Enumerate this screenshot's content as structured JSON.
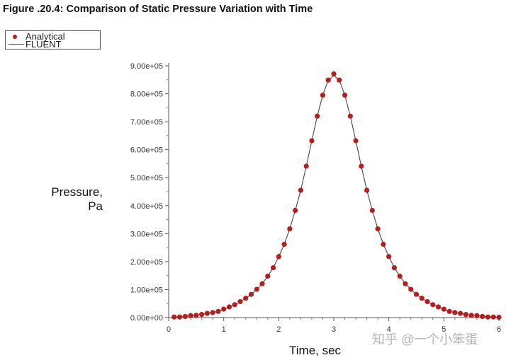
{
  "title": "Figure .20.4: Comparison of Static Pressure Variation with Time",
  "watermark": "知乎 @一个小笨蛋",
  "chart_data": {
    "type": "line",
    "title": "Figure .20.4: Comparison of Static Pressure Variation with Time",
    "xlabel": "Time, sec",
    "ylabel": [
      "Pressure,",
      "Pa"
    ],
    "xlim": [
      0,
      6
    ],
    "ylim": [
      0,
      900000
    ],
    "xticks": [
      "0",
      "1",
      "2",
      "3",
      "4",
      "5",
      "6"
    ],
    "yticks": [
      "0.00e+00",
      "1.00e+05",
      "2.00e+05",
      "3.00e+05",
      "4.00e+05",
      "5.00e+05",
      "6.00e+05",
      "7.00e+05",
      "8.00e+05",
      "9.00e+05"
    ],
    "grid": false,
    "legend_position": "top-left",
    "colors": {
      "analytical": "#b81c1c",
      "fluent": "#444444"
    },
    "series": [
      {
        "name": "Analytical",
        "style": "markers",
        "x": [
          0.1,
          0.2,
          0.3,
          0.4,
          0.5,
          0.6,
          0.7,
          0.8,
          0.9,
          1.0,
          1.1,
          1.2,
          1.3,
          1.4,
          1.5,
          1.6,
          1.7,
          1.8,
          1.9,
          2.0,
          2.1,
          2.2,
          2.3,
          2.4,
          2.5,
          2.6,
          2.7,
          2.8,
          2.9,
          3.0,
          3.1,
          3.2,
          3.3,
          3.4,
          3.5,
          3.6,
          3.7,
          3.8,
          3.9,
          4.0,
          4.1,
          4.2,
          4.3,
          4.4,
          4.5,
          4.6,
          4.7,
          4.8,
          4.9,
          5.0,
          5.1,
          5.2,
          5.3,
          5.4,
          5.5,
          5.6,
          5.7,
          5.8,
          5.9,
          6.0
        ],
        "y": [
          2000,
          2000,
          4000,
          7000,
          8000,
          11000,
          15000,
          18000,
          22000,
          30000,
          38000,
          46000,
          57000,
          69000,
          83000,
          101000,
          121000,
          148000,
          178000,
          218000,
          262000,
          317000,
          383000,
          455000,
          541000,
          632000,
          720000,
          795000,
          849000,
          871000,
          849000,
          795000,
          720000,
          632000,
          541000,
          455000,
          383000,
          317000,
          262000,
          218000,
          178000,
          148000,
          121000,
          101000,
          83000,
          69000,
          57000,
          46000,
          38000,
          30000,
          22000,
          18000,
          15000,
          11000,
          8000,
          7000,
          4000,
          2000,
          2000,
          1000
        ]
      },
      {
        "name": "FLUENT",
        "style": "line",
        "x": [
          0.1,
          0.2,
          0.3,
          0.4,
          0.5,
          0.6,
          0.7,
          0.8,
          0.9,
          1.0,
          1.1,
          1.2,
          1.3,
          1.4,
          1.5,
          1.6,
          1.7,
          1.8,
          1.9,
          2.0,
          2.1,
          2.2,
          2.3,
          2.4,
          2.5,
          2.6,
          2.7,
          2.8,
          2.9,
          3.0,
          3.1,
          3.2,
          3.3,
          3.4,
          3.5,
          3.6,
          3.7,
          3.8,
          3.9,
          4.0,
          4.1,
          4.2,
          4.3,
          4.4,
          4.5,
          4.6,
          4.7,
          4.8,
          4.9,
          5.0,
          5.1,
          5.2,
          5.3,
          5.4,
          5.5,
          5.6,
          5.7,
          5.8,
          5.9,
          6.0
        ],
        "y": [
          2000,
          2000,
          4000,
          7000,
          8000,
          11000,
          15000,
          18000,
          22000,
          30000,
          38000,
          46000,
          57000,
          69000,
          83000,
          101000,
          121000,
          148000,
          178000,
          218000,
          262000,
          317000,
          383000,
          455000,
          541000,
          632000,
          720000,
          795000,
          849000,
          865000,
          849000,
          795000,
          720000,
          632000,
          541000,
          455000,
          383000,
          317000,
          262000,
          218000,
          178000,
          148000,
          121000,
          101000,
          83000,
          69000,
          57000,
          46000,
          38000,
          30000,
          22000,
          18000,
          15000,
          11000,
          8000,
          7000,
          4000,
          2000,
          2000,
          1000
        ]
      }
    ]
  }
}
